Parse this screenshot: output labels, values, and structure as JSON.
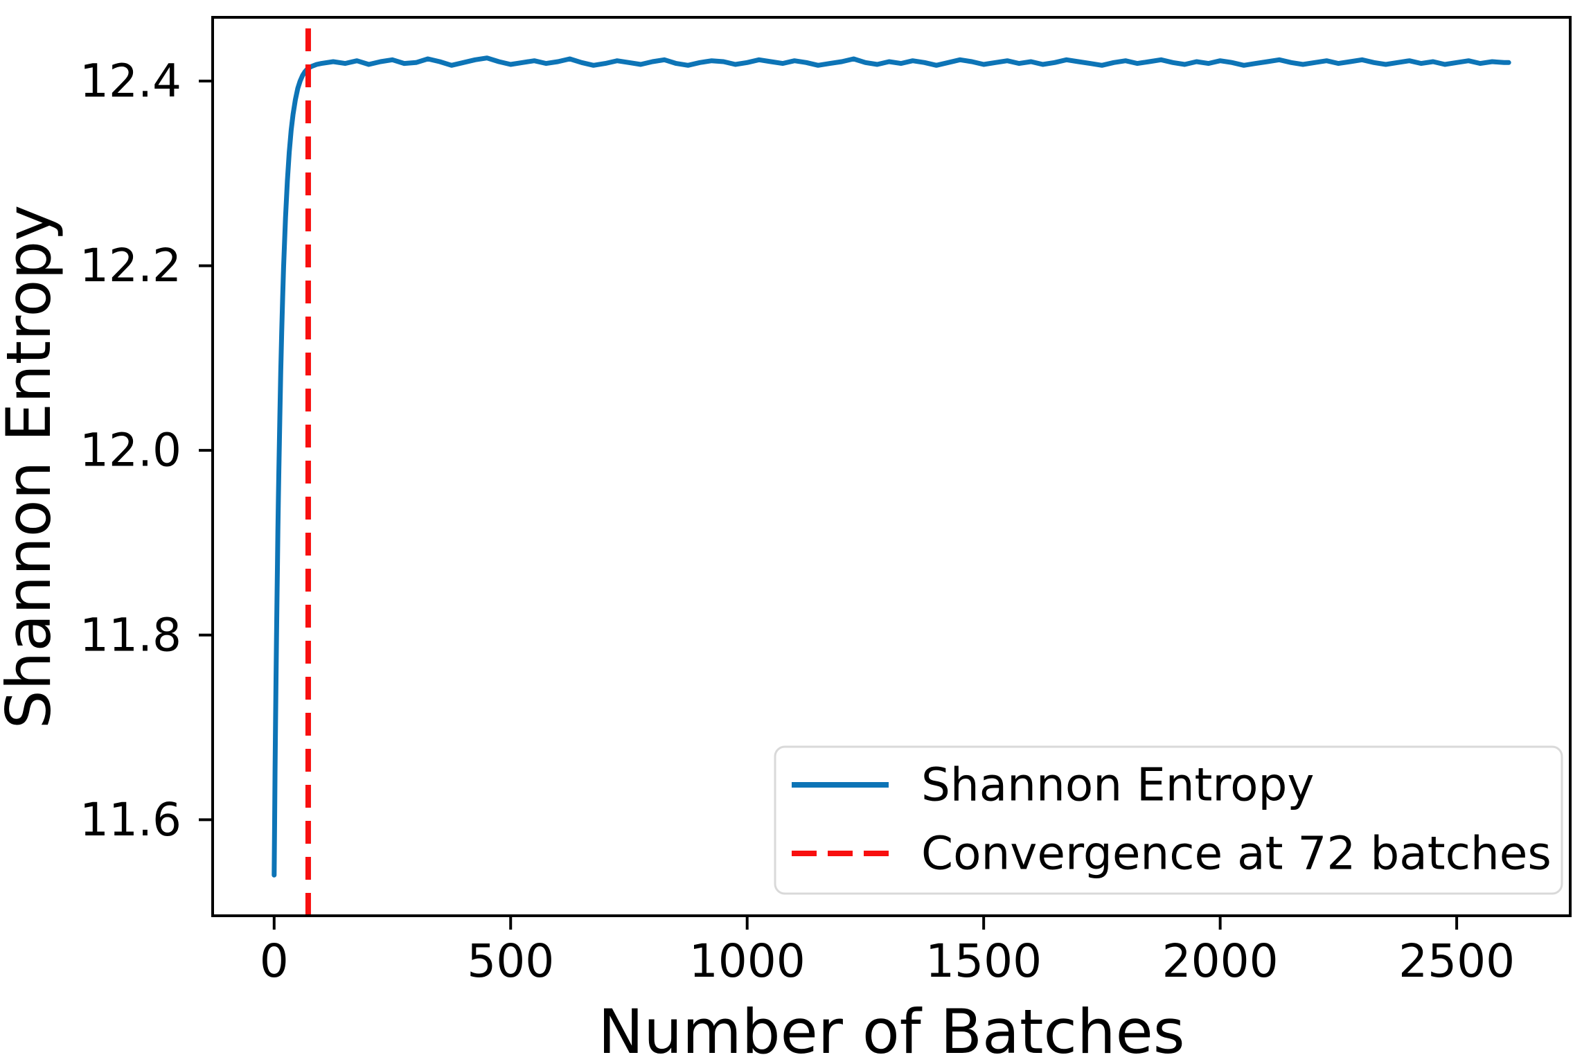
{
  "chart_data": {
    "type": "line",
    "title": "",
    "xlabel": "Number of Batches",
    "ylabel": "Shannon Entropy",
    "xlim": [
      -130,
      2740
    ],
    "ylim": [
      11.496,
      12.469
    ],
    "x_ticks": [
      0,
      500,
      1000,
      1500,
      2000,
      2500
    ],
    "x_tick_labels": [
      "0",
      "500",
      "1000",
      "1500",
      "2000",
      "2500"
    ],
    "y_ticks": [
      11.6,
      11.8,
      12.0,
      12.2,
      12.4
    ],
    "y_tick_labels": [
      "11.6",
      "11.8",
      "12.0",
      "12.2",
      "12.4"
    ],
    "grid": false,
    "legend_position": "lower right",
    "colors": {
      "entropy_line": "#0d74b6",
      "convergence_line": "#f80f0f",
      "axis": "#000000",
      "legend_border": "#d9d9d9",
      "legend_background": "#ffffff"
    },
    "series": [
      {
        "name": "Shannon Entropy",
        "type": "line",
        "style": "solid",
        "color": "#0d74b6",
        "line_width": 7,
        "points": [
          [
            0,
            11.54
          ],
          [
            1,
            11.598
          ],
          [
            2,
            11.653
          ],
          [
            3,
            11.704
          ],
          [
            4,
            11.752
          ],
          [
            5,
            11.797
          ],
          [
            6,
            11.838
          ],
          [
            7,
            11.877
          ],
          [
            8,
            11.913
          ],
          [
            9,
            11.947
          ],
          [
            10,
            11.978
          ],
          [
            12,
            12.035
          ],
          [
            14,
            12.085
          ],
          [
            16,
            12.128
          ],
          [
            18,
            12.166
          ],
          [
            20,
            12.198
          ],
          [
            24,
            12.252
          ],
          [
            28,
            12.292
          ],
          [
            32,
            12.323
          ],
          [
            36,
            12.347
          ],
          [
            40,
            12.364
          ],
          [
            45,
            12.38
          ],
          [
            50,
            12.392
          ],
          [
            55,
            12.4
          ],
          [
            60,
            12.406
          ],
          [
            65,
            12.41
          ],
          [
            72,
            12.414
          ],
          [
            80,
            12.416
          ],
          [
            90,
            12.418
          ],
          [
            100,
            12.419
          ],
          [
            125,
            12.421
          ],
          [
            150,
            12.419
          ],
          [
            175,
            12.422
          ],
          [
            200,
            12.418
          ],
          [
            225,
            12.421
          ],
          [
            250,
            12.423
          ],
          [
            275,
            12.419
          ],
          [
            300,
            12.42
          ],
          [
            325,
            12.424
          ],
          [
            350,
            12.421
          ],
          [
            375,
            12.417
          ],
          [
            400,
            12.42
          ],
          [
            425,
            12.423
          ],
          [
            450,
            12.425
          ],
          [
            475,
            12.421
          ],
          [
            500,
            12.418
          ],
          [
            525,
            12.42
          ],
          [
            550,
            12.422
          ],
          [
            575,
            12.419
          ],
          [
            600,
            12.421
          ],
          [
            625,
            12.424
          ],
          [
            650,
            12.42
          ],
          [
            675,
            12.417
          ],
          [
            700,
            12.419
          ],
          [
            725,
            12.422
          ],
          [
            750,
            12.42
          ],
          [
            775,
            12.418
          ],
          [
            800,
            12.421
          ],
          [
            825,
            12.423
          ],
          [
            850,
            12.419
          ],
          [
            875,
            12.417
          ],
          [
            900,
            12.42
          ],
          [
            925,
            12.422
          ],
          [
            950,
            12.421
          ],
          [
            975,
            12.418
          ],
          [
            1000,
            12.42
          ],
          [
            1025,
            12.423
          ],
          [
            1050,
            12.421
          ],
          [
            1075,
            12.419
          ],
          [
            1100,
            12.422
          ],
          [
            1125,
            12.42
          ],
          [
            1150,
            12.417
          ],
          [
            1175,
            12.419
          ],
          [
            1200,
            12.421
          ],
          [
            1225,
            12.424
          ],
          [
            1250,
            12.42
          ],
          [
            1275,
            12.418
          ],
          [
            1300,
            12.421
          ],
          [
            1325,
            12.419
          ],
          [
            1350,
            12.422
          ],
          [
            1375,
            12.42
          ],
          [
            1400,
            12.417
          ],
          [
            1425,
            12.42
          ],
          [
            1450,
            12.423
          ],
          [
            1475,
            12.421
          ],
          [
            1500,
            12.418
          ],
          [
            1525,
            12.42
          ],
          [
            1550,
            12.422
          ],
          [
            1575,
            12.419
          ],
          [
            1600,
            12.421
          ],
          [
            1625,
            12.418
          ],
          [
            1650,
            12.42
          ],
          [
            1675,
            12.423
          ],
          [
            1700,
            12.421
          ],
          [
            1725,
            12.419
          ],
          [
            1750,
            12.417
          ],
          [
            1775,
            12.42
          ],
          [
            1800,
            12.422
          ],
          [
            1825,
            12.419
          ],
          [
            1850,
            12.421
          ],
          [
            1875,
            12.423
          ],
          [
            1900,
            12.42
          ],
          [
            1925,
            12.418
          ],
          [
            1950,
            12.421
          ],
          [
            1975,
            12.419
          ],
          [
            2000,
            12.422
          ],
          [
            2025,
            12.42
          ],
          [
            2050,
            12.417
          ],
          [
            2075,
            12.419
          ],
          [
            2100,
            12.421
          ],
          [
            2125,
            12.423
          ],
          [
            2150,
            12.42
          ],
          [
            2175,
            12.418
          ],
          [
            2200,
            12.42
          ],
          [
            2225,
            12.422
          ],
          [
            2250,
            12.419
          ],
          [
            2275,
            12.421
          ],
          [
            2300,
            12.423
          ],
          [
            2325,
            12.42
          ],
          [
            2350,
            12.418
          ],
          [
            2375,
            12.42
          ],
          [
            2400,
            12.422
          ],
          [
            2425,
            12.419
          ],
          [
            2450,
            12.421
          ],
          [
            2475,
            12.418
          ],
          [
            2500,
            12.42
          ],
          [
            2525,
            12.422
          ],
          [
            2550,
            12.419
          ],
          [
            2575,
            12.421
          ],
          [
            2600,
            12.42
          ],
          [
            2610,
            12.42
          ]
        ]
      },
      {
        "name": "Convergence at 72 batches",
        "type": "vline",
        "style": "dashed",
        "color": "#f80f0f",
        "line_width": 8,
        "x": 72
      }
    ],
    "annotations": {
      "convergence_batch": 72,
      "plateau_entropy": 12.42
    }
  }
}
